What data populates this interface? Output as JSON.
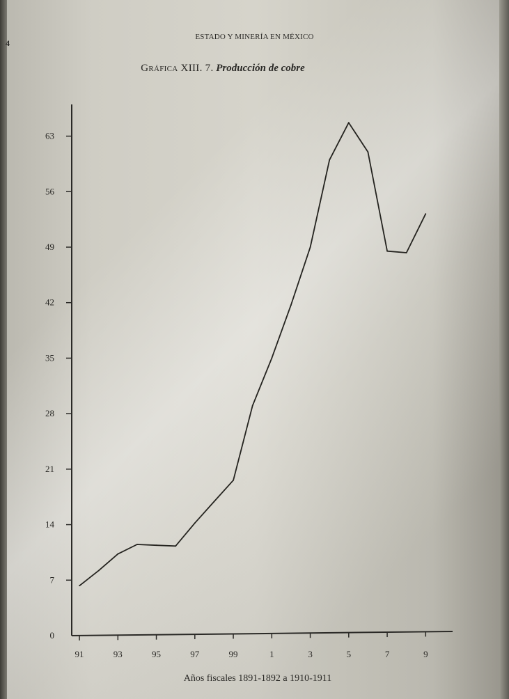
{
  "running_head": "ESTADO Y MINERÍA EN MÉXICO",
  "page_number_fragment": "4",
  "figure_label": "Gráfica XIII. 7.",
  "figure_title": "Producción de cobre",
  "chart_data": {
    "type": "line",
    "title": "Producción de cobre",
    "xlabel": "Años fiscales 1891-1892 a 1910-1911",
    "ylabel": "",
    "x_tick_labels": [
      "91",
      "93",
      "95",
      "97",
      "99",
      "1",
      "3",
      "5",
      "7",
      "9"
    ],
    "x_tick_years": [
      1891,
      1893,
      1895,
      1897,
      1899,
      1901,
      1903,
      1905,
      1907,
      1909
    ],
    "y_ticks": [
      0,
      7,
      14,
      21,
      28,
      35,
      42,
      49,
      56,
      63
    ],
    "y_tick_labels": [
      "0",
      "7",
      "14",
      "21",
      "28",
      "35",
      "42",
      "49",
      "56",
      "63"
    ],
    "xlim": [
      1890.6,
      1910.4
    ],
    "ylim": [
      0,
      67
    ],
    "grid": false,
    "series": [
      {
        "x": [
          1891,
          1892,
          1893,
          1894,
          1895,
          1896,
          1897,
          1898,
          1899,
          1900,
          1901,
          1902,
          1903,
          1904,
          1905,
          1906,
          1907,
          1908,
          1909
        ],
        "y": [
          6.3,
          8.2,
          10.3,
          11.5,
          11.4,
          11.3,
          14.2,
          16.9,
          19.6,
          29.0,
          35.0,
          41.7,
          49.0,
          60.0,
          64.7,
          61.0,
          48.5,
          48.3,
          53.2
        ]
      }
    ]
  }
}
